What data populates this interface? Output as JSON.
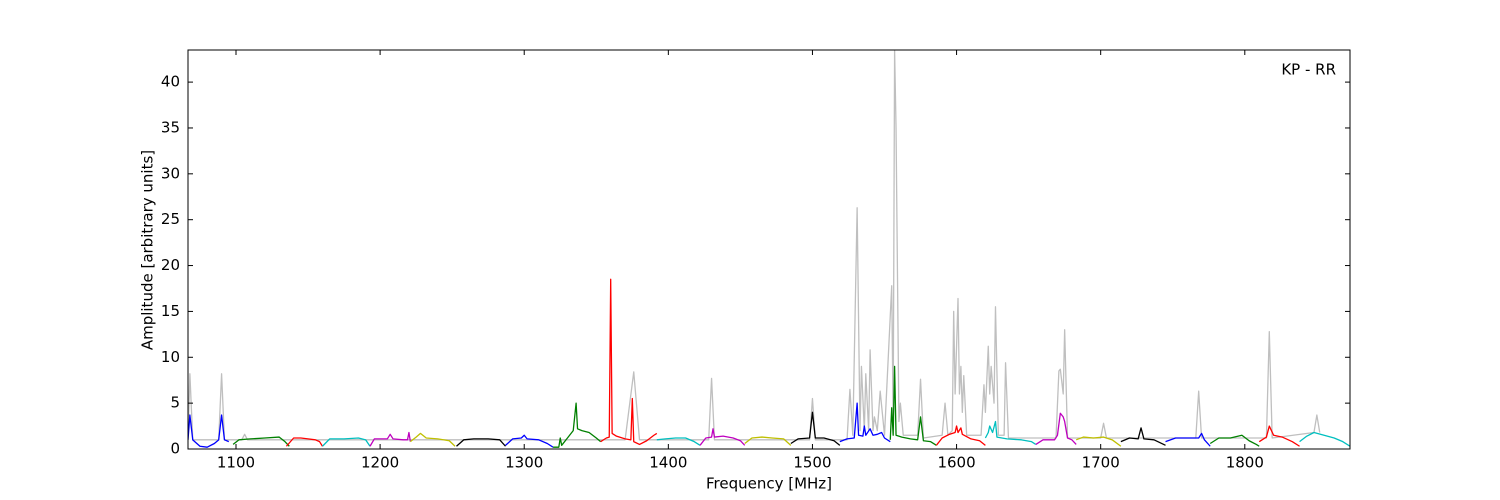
{
  "chart_data": {
    "type": "line",
    "annotation": "KP - RR",
    "x_label": "Frequency [MHz]",
    "y_label": "Amplitude [arbitrary units]",
    "xlim": [
      1066.7,
      1873
    ],
    "ylim": [
      0,
      43.5
    ],
    "xticks": [
      1100,
      1200,
      1300,
      1400,
      1500,
      1600,
      1700,
      1800
    ],
    "yticks": [
      0,
      5,
      10,
      15,
      20,
      25,
      30,
      35,
      40
    ],
    "grid": false,
    "series": [
      {
        "color": "#bfbfbf",
        "x": [
          1066.7,
          1068,
          1070,
          1088,
          1090,
          1092,
          1104,
          1106,
          1108,
          1370,
          1376,
          1380,
          1428,
          1430,
          1432,
          1498,
          1500,
          1502,
          1524,
          1526,
          1528,
          1531,
          1533,
          1534,
          1536,
          1537,
          1539,
          1540,
          1542,
          1543,
          1545,
          1547,
          1550,
          1555,
          1556,
          1557,
          1558,
          1560,
          1561,
          1563,
          1573,
          1575,
          1577,
          1590,
          1592,
          1594,
          1597,
          1598,
          1599,
          1601,
          1602,
          1603,
          1604,
          1605,
          1607,
          1617,
          1619,
          1620,
          1622,
          1623,
          1624,
          1626,
          1627,
          1629,
          1633,
          1634,
          1636,
          1669,
          1671,
          1672,
          1674,
          1675,
          1677,
          1700,
          1702,
          1704,
          1766,
          1768,
          1770,
          1815,
          1817,
          1819,
          1848,
          1850,
          1852
        ],
        "values": [
          1,
          8.2,
          1,
          1,
          8.2,
          1,
          1,
          1.6,
          1,
          1,
          8.4,
          1,
          1,
          7.7,
          1,
          1,
          5.5,
          1,
          1,
          6.5,
          1.5,
          26.3,
          2,
          9,
          2,
          8.2,
          2,
          10.8,
          2,
          3.5,
          2,
          6.3,
          1.5,
          17.8,
          3,
          43.5,
          35,
          3,
          5,
          1.5,
          1.5,
          7.6,
          1.2,
          1.5,
          5,
          1.5,
          2,
          15,
          6,
          16.4,
          6,
          9,
          4,
          8,
          1.5,
          1.5,
          7,
          4,
          11.2,
          6,
          9,
          5,
          15.5,
          1.5,
          1.5,
          9.4,
          1.2,
          1.2,
          8.5,
          8.7,
          6,
          13,
          1.2,
          1.2,
          2.8,
          1.2,
          1.2,
          6.3,
          1.2,
          1.2,
          12.8,
          1.2,
          1.8,
          3.7,
          1.8
        ]
      },
      {
        "color": "#0000ff",
        "x": [
          1066.7,
          1068,
          1070,
          1075,
          1080,
          1085,
          1088,
          1090,
          1092,
          1095
        ],
        "values": [
          1,
          3.7,
          1,
          0.3,
          0.2,
          0.6,
          1,
          3.7,
          1,
          0.8
        ]
      },
      {
        "color": "#008000",
        "x": [
          1098,
          1102,
          1110,
          1120,
          1130,
          1134,
          1137
        ],
        "values": [
          0.5,
          1,
          1.1,
          1.2,
          1.3,
          0.8,
          0.3
        ]
      },
      {
        "color": "#ff0000",
        "x": [
          1135,
          1140,
          1145,
          1150,
          1155,
          1158,
          1160
        ],
        "values": [
          0.3,
          1.2,
          1.2,
          1.1,
          1.0,
          0.8,
          0.3
        ]
      },
      {
        "color": "#00bfbf",
        "x": [
          1160,
          1165,
          1175,
          1185,
          1190,
          1193
        ],
        "values": [
          0.3,
          1.1,
          1.1,
          1.2,
          1,
          0.3
        ]
      },
      {
        "color": "#bf00bf",
        "x": [
          1193,
          1196,
          1205,
          1207,
          1209,
          1216,
          1219,
          1220,
          1221
        ],
        "values": [
          0.3,
          1.1,
          1.1,
          1.6,
          1.1,
          1.0,
          1.0,
          1.8,
          0.8
        ]
      },
      {
        "color": "#bfbf00",
        "x": [
          1221,
          1225,
          1228,
          1232,
          1240,
          1248,
          1252
        ],
        "values": [
          0.8,
          1.3,
          1.7,
          1.2,
          1.1,
          0.9,
          0.3
        ]
      },
      {
        "color": "#000000",
        "x": [
          1253,
          1258,
          1265,
          1275,
          1283,
          1287
        ],
        "values": [
          0.3,
          1.0,
          1.1,
          1.1,
          1.0,
          0.3
        ]
      },
      {
        "color": "#0000ff",
        "x": [
          1287,
          1292,
          1298,
          1300,
          1302,
          1310,
          1316,
          1320
        ],
        "values": [
          0.4,
          1.1,
          1.2,
          1.5,
          1.1,
          1.0,
          0.6,
          0.2
        ]
      },
      {
        "color": "#008000",
        "x": [
          1320,
          1324,
          1325,
          1326,
          1330,
          1334,
          1336,
          1337,
          1340,
          1345,
          1350,
          1353
        ],
        "values": [
          0.2,
          0.2,
          1.2,
          0.4,
          1.2,
          2.0,
          5.0,
          2.2,
          2.0,
          1.8,
          1.2,
          0.8
        ]
      },
      {
        "color": "#ff0000",
        "x": [
          1353,
          1357,
          1359,
          1360,
          1361,
          1364,
          1370,
          1374,
          1375,
          1376,
          1380,
          1385,
          1390,
          1392
        ],
        "values": [
          0.8,
          1.2,
          1.3,
          18.5,
          1.7,
          1.4,
          1.1,
          1.0,
          5.5,
          0.8,
          0.5,
          0.9,
          1.5,
          1.7
        ]
      },
      {
        "color": "#00bfbf",
        "x": [
          1392,
          1398,
          1405,
          1412,
          1418,
          1422
        ],
        "values": [
          1.0,
          1.1,
          1.2,
          1.2,
          0.8,
          0.4
        ]
      },
      {
        "color": "#bf00bf",
        "x": [
          1422,
          1426,
          1430,
          1431,
          1432,
          1438,
          1445,
          1450,
          1453
        ],
        "values": [
          0.4,
          1.2,
          1.3,
          2.2,
          1.3,
          1.4,
          1.2,
          0.9,
          0.4
        ]
      },
      {
        "color": "#bfbf00",
        "x": [
          1453,
          1458,
          1465,
          1472,
          1480,
          1485
        ],
        "values": [
          0.6,
          1.2,
          1.3,
          1.2,
          1.1,
          0.4
        ]
      },
      {
        "color": "#000000",
        "x": [
          1485,
          1490,
          1498,
          1500,
          1502,
          1508,
          1515,
          1519
        ],
        "values": [
          0.6,
          1.1,
          1.2,
          4.0,
          1.2,
          1.2,
          0.9,
          0.4
        ]
      },
      {
        "color": "#0000ff",
        "x": [
          1519,
          1524,
          1529,
          1531,
          1532,
          1535,
          1536,
          1537,
          1540,
          1542,
          1545,
          1548,
          1550,
          1554
        ],
        "values": [
          0.8,
          1.1,
          1.2,
          5.0,
          1.5,
          1.4,
          2.5,
          1.5,
          2.2,
          1.5,
          1.6,
          1.8,
          1.2,
          0.8
        ]
      },
      {
        "color": "#008000",
        "x": [
          1554,
          1555,
          1556,
          1557,
          1558,
          1562,
          1568,
          1573,
          1575,
          1577,
          1582,
          1586
        ],
        "values": [
          1.0,
          4.5,
          1.5,
          9.0,
          1.5,
          1.3,
          1.1,
          1.0,
          3.5,
          0.9,
          0.8,
          0.4
        ]
      },
      {
        "color": "#ff0000",
        "x": [
          1586,
          1590,
          1595,
          1599,
          1600,
          1601,
          1603,
          1604,
          1610,
          1616,
          1620
        ],
        "values": [
          0.4,
          1.2,
          1.6,
          1.8,
          2.5,
          1.8,
          2.3,
          1.6,
          1.1,
          0.9,
          0.4
        ]
      },
      {
        "color": "#00bfbf",
        "x": [
          1620,
          1622,
          1623,
          1625,
          1627,
          1628,
          1635,
          1645,
          1652,
          1655
        ],
        "values": [
          1.2,
          1.8,
          2.5,
          1.8,
          3.0,
          1.3,
          1.1,
          1.0,
          0.8,
          0.5
        ]
      },
      {
        "color": "#bf00bf",
        "x": [
          1655,
          1660,
          1668,
          1670,
          1672,
          1674,
          1675,
          1677,
          1680,
          1683
        ],
        "values": [
          0.5,
          1.0,
          1.0,
          1.5,
          3.9,
          3.5,
          3.0,
          1.2,
          1.0,
          0.5
        ]
      },
      {
        "color": "#bfbf00",
        "x": [
          1683,
          1688,
          1695,
          1702,
          1708,
          1714
        ],
        "values": [
          1.0,
          1.3,
          1.2,
          1.3,
          1.0,
          0.3
        ]
      },
      {
        "color": "#000000",
        "x": [
          1714,
          1720,
          1726,
          1728,
          1730,
          1737,
          1745
        ],
        "values": [
          0.8,
          1.2,
          1.1,
          2.3,
          1.1,
          1.0,
          0.4
        ]
      },
      {
        "color": "#0000ff",
        "x": [
          1745,
          1752,
          1760,
          1768,
          1770,
          1772,
          1776
        ],
        "values": [
          0.8,
          1.2,
          1.2,
          1.2,
          1.7,
          1.0,
          0.3
        ]
      },
      {
        "color": "#008000",
        "x": [
          1776,
          1782,
          1790,
          1798,
          1803,
          1808,
          1810
        ],
        "values": [
          0.6,
          1.2,
          1.2,
          1.5,
          0.9,
          0.5,
          0.3
        ]
      },
      {
        "color": "#ff0000",
        "x": [
          1810,
          1815,
          1817,
          1820,
          1826,
          1833,
          1838
        ],
        "values": [
          0.8,
          1.3,
          2.5,
          1.5,
          1.3,
          0.8,
          0.3
        ]
      },
      {
        "color": "#00bfbf",
        "x": [
          1838,
          1843,
          1848,
          1855,
          1862,
          1868,
          1873
        ],
        "values": [
          0.8,
          1.4,
          1.8,
          1.5,
          1.2,
          0.8,
          0.3
        ]
      }
    ]
  }
}
